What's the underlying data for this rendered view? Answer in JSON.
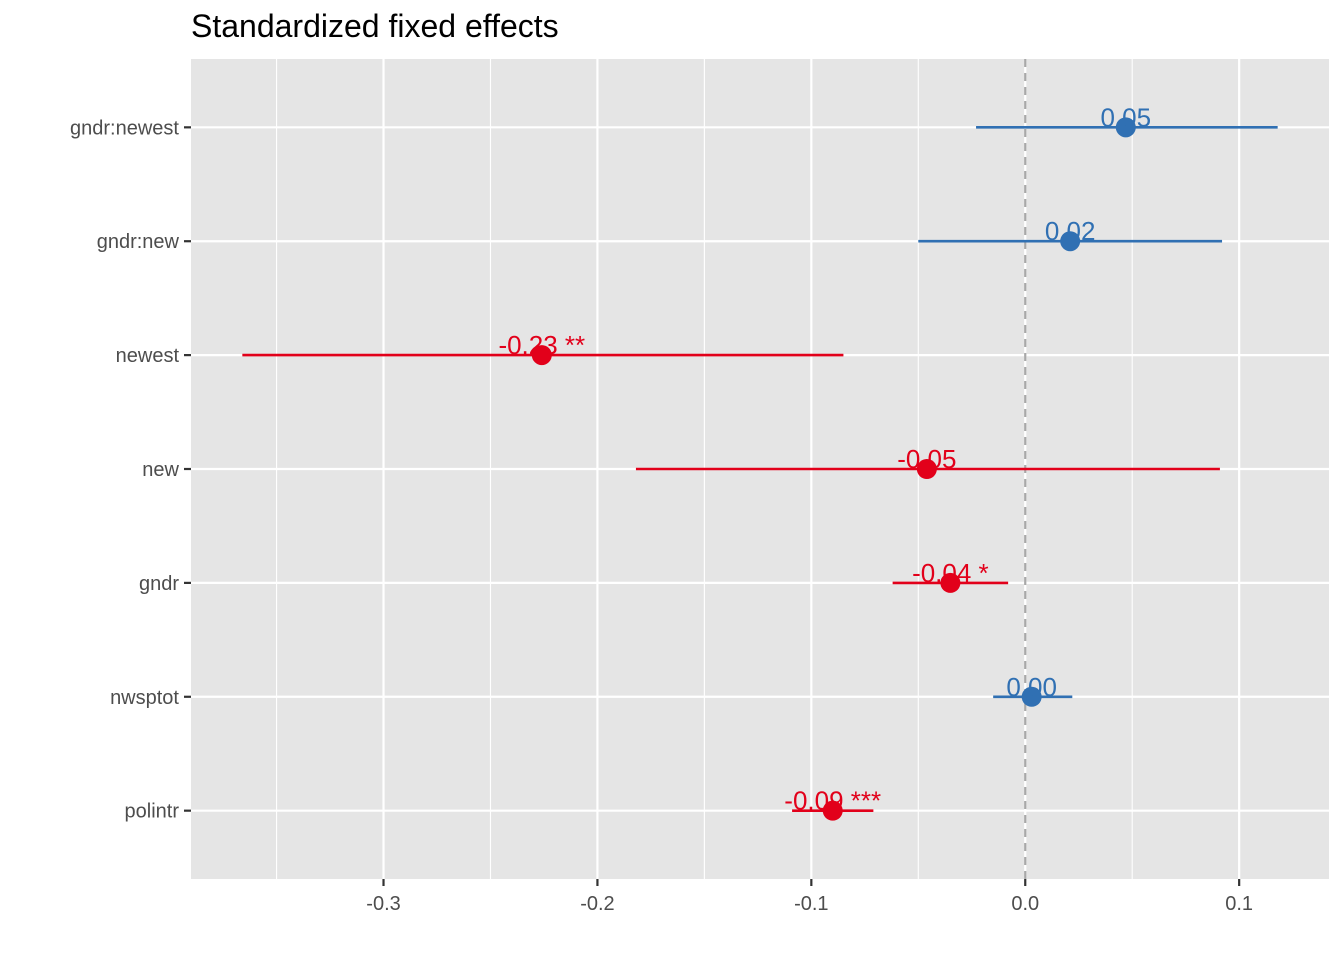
{
  "chart_data": {
    "type": "forest",
    "title": "Standardized fixed effects",
    "xlabel": "",
    "ylabel": "",
    "xlim": [
      -0.39,
      0.142
    ],
    "x_ticks": [
      -0.3,
      -0.2,
      -0.1,
      0.0,
      0.1
    ],
    "x_tick_labels": [
      "-0.3",
      "-0.2",
      "-0.1",
      "0.0",
      "0.1"
    ],
    "reference_line": 0.0,
    "grid": true,
    "colors": {
      "positive": "#3070b3",
      "negative": "#e2001a",
      "panel": "#e5e5e5",
      "grid": "#ffffff",
      "reference": "#a8a8a8"
    },
    "terms": [
      {
        "name": "gndr:newest",
        "estimate": 0.047,
        "lower": -0.023,
        "upper": 0.118,
        "label": "0.05",
        "sign": "positive"
      },
      {
        "name": "gndr:new",
        "estimate": 0.021,
        "lower": -0.05,
        "upper": 0.092,
        "label": "0.02",
        "sign": "positive"
      },
      {
        "name": "newest",
        "estimate": -0.226,
        "lower": -0.366,
        "upper": -0.085,
        "label": "-0.23 **",
        "sign": "negative"
      },
      {
        "name": "new",
        "estimate": -0.046,
        "lower": -0.182,
        "upper": 0.091,
        "label": "-0.05",
        "sign": "negative"
      },
      {
        "name": "gndr",
        "estimate": -0.035,
        "lower": -0.062,
        "upper": -0.008,
        "label": "-0.04 *",
        "sign": "negative"
      },
      {
        "name": "nwsptot",
        "estimate": 0.003,
        "lower": -0.015,
        "upper": 0.022,
        "label": "0.00",
        "sign": "positive"
      },
      {
        "name": "polintr",
        "estimate": -0.09,
        "lower": -0.109,
        "upper": -0.071,
        "label": "-0.09 ***",
        "sign": "negative"
      }
    ]
  }
}
